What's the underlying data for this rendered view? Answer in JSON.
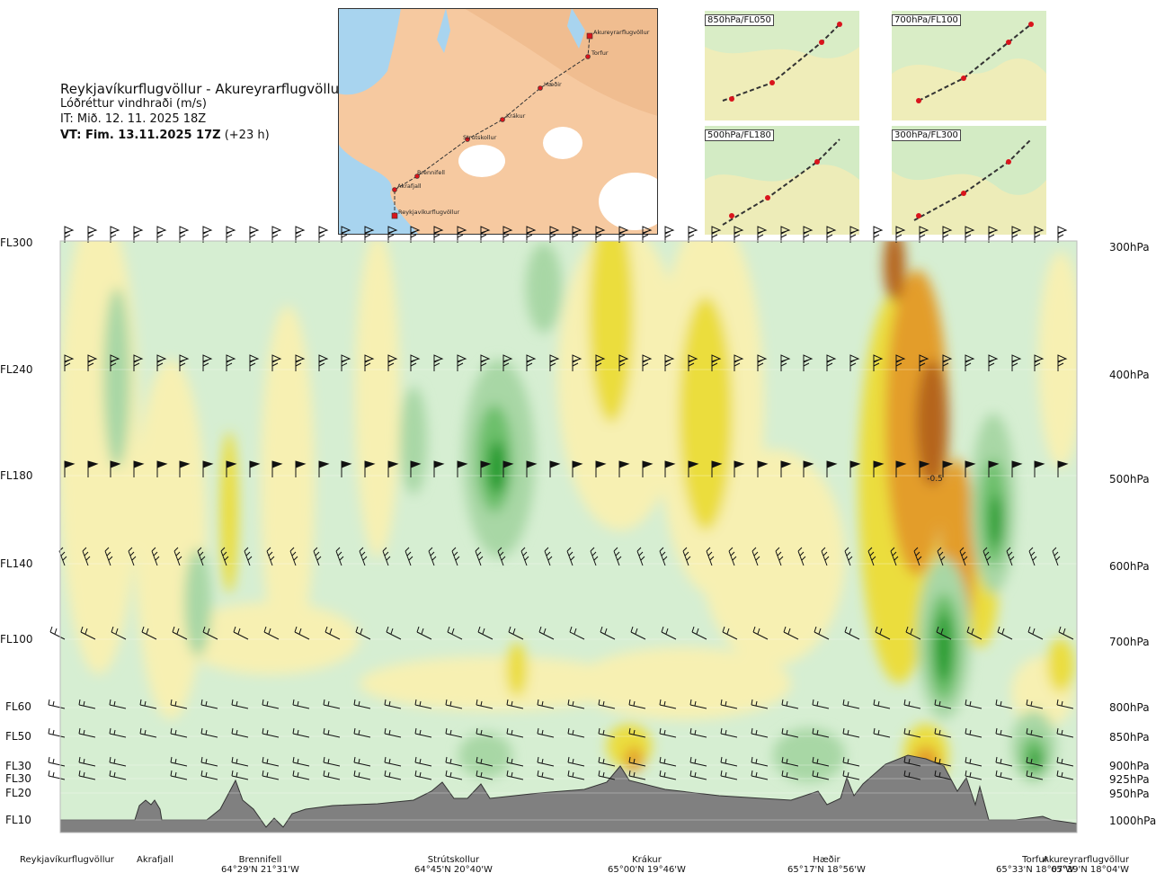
{
  "header": {
    "title": "Reykjavíkurflugvöllur - Akureyrarflugvöllur",
    "subtitle": "Lóðréttur vindhraði (m/s)",
    "issue_time": "IT: Mið. 12. 11. 2025 18Z",
    "valid_time_bold": "VT: Fim. 13.11.2025 17Z",
    "valid_time_suffix": "(+23 h)"
  },
  "route_map": {
    "waypoints": [
      "Akureyrarflugvöllur",
      "Torfur",
      "Hæðir",
      "Krákur",
      "Strútskollur",
      "Brennifell",
      "Akrafjall",
      "Reykjavíkurflugvöllur"
    ],
    "colors": {
      "sea": "#a8d4ef",
      "land": "#f6c9a0",
      "ice": "#ffffff",
      "route": "#d9141c"
    }
  },
  "insets": [
    {
      "label": "850hPa/FL050"
    },
    {
      "label": "700hPa/FL100"
    },
    {
      "label": "500hPa/FL180"
    },
    {
      "label": "300hPa/FL300"
    }
  ],
  "chart_data": {
    "type": "heatmap",
    "title": "Reykjavíkurflugvöllur - Akureyrarflugvöllur",
    "variable": "Lóðréttur vindhraði (m/s)",
    "x_axis": "route distance (Reykjavíkurflugvöllur → Akureyrarflugvöllur)",
    "y_axis": "pressure level (hPa)",
    "flight_levels": [
      "FL300",
      "FL240",
      "FL180",
      "FL140",
      "FL100",
      "FL60",
      "FL50",
      "FL30",
      "FL30",
      "FL20",
      "FL10"
    ],
    "pressure_levels": [
      "300hPa",
      "400hPa",
      "500hPa",
      "600hPa",
      "700hPa",
      "800hPa",
      "850hPa",
      "900hPa",
      "925hPa",
      "950hPa",
      "1000hPa"
    ],
    "annotations": [
      "-0.5"
    ],
    "color_scale": {
      "green_dark": "#1f9a2b",
      "green_mid": "#6cbf6a",
      "green_light": "#a8d7a5",
      "green_pale": "#d6eed2",
      "white": "#ffffff",
      "yellow_pale": "#f7f0b2",
      "yellow": "#ebdd3e",
      "orange": "#e39d2a",
      "brown": "#b5651d",
      "terrain": "#808080"
    },
    "route_points": [
      {
        "name": "Reykjavíkurflugvöllur",
        "coords": ""
      },
      {
        "name": "Akrafjall",
        "coords": ""
      },
      {
        "name": "Brennifell",
        "coords": "64°29'N 21°31'W"
      },
      {
        "name": "Strútskollur",
        "coords": "64°45'N 20°40'W"
      },
      {
        "name": "Krákur",
        "coords": "65°00'N 19°46'W"
      },
      {
        "name": "Hæðir",
        "coords": "65°17'N 18°56'W"
      },
      {
        "name": "Torfur",
        "coords": "65°33'N 18°07'W"
      },
      {
        "name": "Akureyrarflugvöllur",
        "coords": "65°39'N 18°04'W"
      }
    ],
    "legend": "none",
    "grid": true
  }
}
